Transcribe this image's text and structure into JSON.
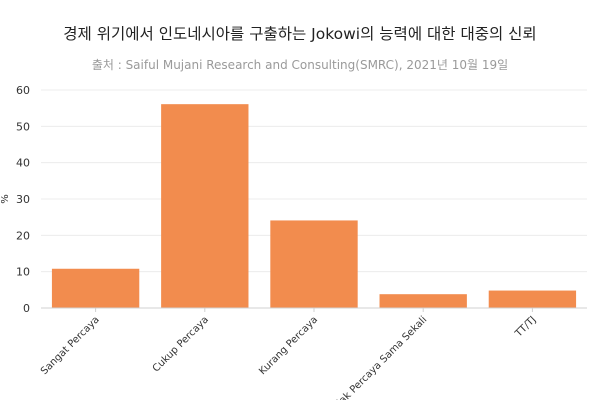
{
  "chart_data": {
    "type": "bar",
    "title": "경제 위기에서 인도네시아를 구출하는 Jokowi의 능력에 대한 대중의 신뢰",
    "subtitle": "출처 : Saiful Mujani Research and Consulting(SMRC), 2021년 10월 19일",
    "xlabel": "",
    "ylabel": "%",
    "categories": [
      "Sangat Percaya",
      "Cukup Percaya",
      "Kurang Percaya",
      "Tidak Percaya Sama Sekali",
      "TT/TJ"
    ],
    "values": [
      10.8,
      56.1,
      24.1,
      3.8,
      4.8
    ],
    "ylim": [
      0,
      60
    ],
    "yticks": [
      0,
      10,
      20,
      30,
      40,
      50,
      60
    ],
    "grid": true,
    "legend": "none",
    "bar_color": "#f28c4e"
  }
}
